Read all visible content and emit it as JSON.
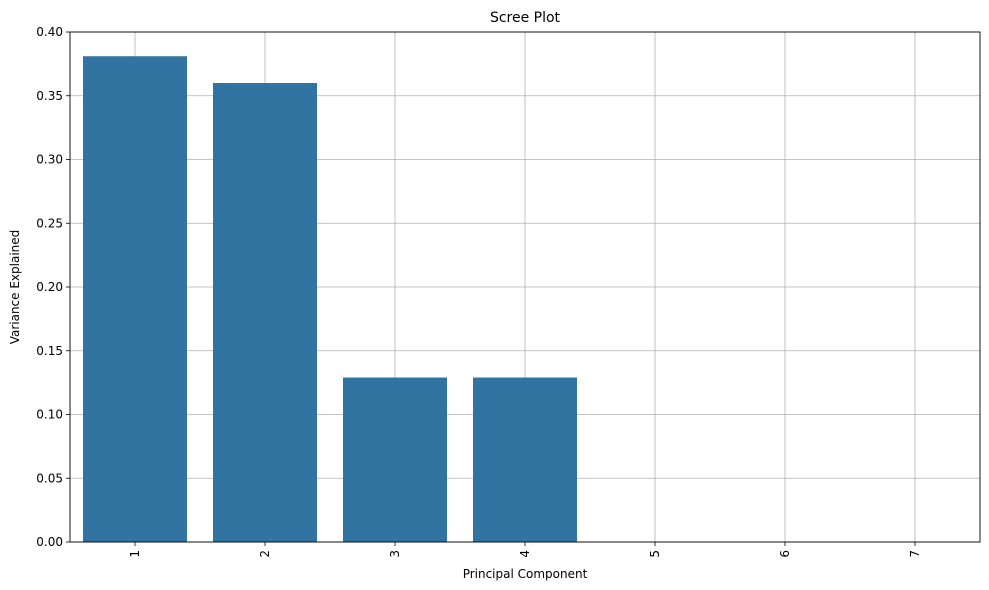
{
  "chart_data": {
    "type": "bar",
    "title": "Scree Plot",
    "xlabel": "Principal Component",
    "ylabel": "Variance Explained",
    "categories": [
      "1",
      "2",
      "3",
      "4",
      "5",
      "6",
      "7"
    ],
    "values": [
      0.381,
      0.36,
      0.129,
      0.129,
      0.0,
      0.0,
      0.0
    ],
    "ylim": [
      0,
      0.4
    ],
    "yticks": [
      "0.00",
      "0.05",
      "0.10",
      "0.15",
      "0.20",
      "0.25",
      "0.30",
      "0.35",
      "0.40"
    ],
    "grid": true,
    "bar_color": "#3274a1",
    "xtick_rotation": "vertical"
  }
}
